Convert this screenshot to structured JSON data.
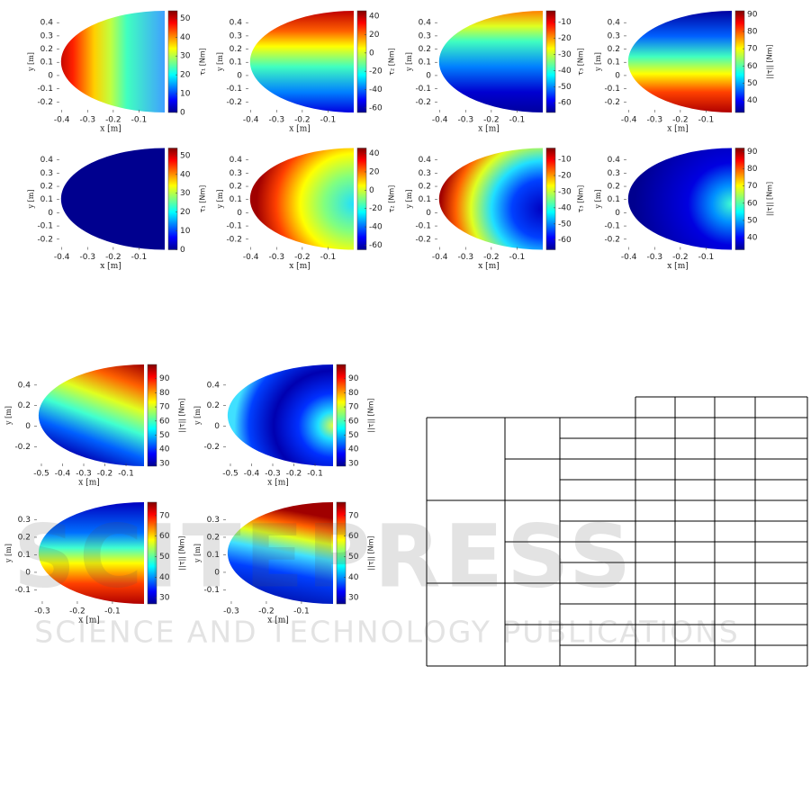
{
  "figures": [
    {
      "xlabel": "x [m]",
      "ylabel": "y [m]",
      "clabel": "τ₁ [Nm]",
      "xlim": [
        -0.42,
        0.0
      ],
      "ylim": [
        -0.28,
        0.49
      ],
      "xticks": [
        -0.4,
        -0.3,
        -0.2,
        -0.1
      ],
      "yticks": [
        -0.2,
        -0.1,
        0,
        0.1,
        0.2,
        0.3,
        0.4
      ],
      "clim": [
        0,
        54
      ],
      "cticks": [
        0,
        10,
        20,
        30,
        40,
        50
      ]
    },
    {
      "xlabel": "x [m]",
      "ylabel": "y [m]",
      "clabel": "τ₂ [Nm]",
      "xlim": [
        -0.42,
        0.0
      ],
      "ylim": [
        -0.28,
        0.49
      ],
      "xticks": [
        -0.4,
        -0.3,
        -0.2,
        -0.1
      ],
      "yticks": [
        -0.2,
        -0.1,
        0,
        0.1,
        0.2,
        0.3,
        0.4
      ],
      "clim": [
        -65,
        46
      ],
      "cticks": [
        -60,
        -40,
        -20,
        0,
        20,
        40
      ]
    },
    {
      "xlabel": "x [m]",
      "ylabel": "y [m]",
      "clabel": "τ₃ [Nm]",
      "xlim": [
        -0.42,
        0.0
      ],
      "ylim": [
        -0.28,
        0.49
      ],
      "xticks": [
        -0.4,
        -0.3,
        -0.2,
        -0.1
      ],
      "yticks": [
        -0.2,
        -0.1,
        0,
        0.1,
        0.2,
        0.3,
        0.4
      ],
      "clim": [
        -66,
        -3
      ],
      "cticks": [
        -60,
        -50,
        -40,
        -30,
        -20,
        -10
      ]
    },
    {
      "xlabel": "x [m]",
      "ylabel": "y [m]",
      "clabel": "||τ|| [Nm]",
      "xlim": [
        -0.42,
        0.0
      ],
      "ylim": [
        -0.28,
        0.49
      ],
      "xticks": [
        -0.4,
        -0.3,
        -0.2,
        -0.1
      ],
      "yticks": [
        -0.2,
        -0.1,
        0,
        0.1,
        0.2,
        0.3,
        0.4
      ],
      "clim": [
        33,
        92
      ],
      "cticks": [
        40,
        50,
        60,
        70,
        80,
        90
      ]
    },
    {
      "xlabel": "x [m]",
      "ylabel": "y [m]",
      "clabel": "τ₁ [Nm]",
      "xlim": [
        -0.42,
        0.0
      ],
      "ylim": [
        -0.28,
        0.49
      ],
      "xticks": [
        -0.4,
        -0.3,
        -0.2,
        -0.1
      ],
      "yticks": [
        -0.2,
        -0.1,
        0,
        0.1,
        0.2,
        0.3,
        0.4
      ],
      "clim": [
        0,
        54
      ],
      "cticks": [
        0,
        10,
        20,
        30,
        40,
        50
      ]
    },
    {
      "xlabel": "x [m]",
      "ylabel": "y [m]",
      "clabel": "τ₂ [Nm]",
      "xlim": [
        -0.42,
        0.0
      ],
      "ylim": [
        -0.28,
        0.49
      ],
      "xticks": [
        -0.4,
        -0.3,
        -0.2,
        -0.1
      ],
      "yticks": [
        -0.2,
        -0.1,
        0,
        0.1,
        0.2,
        0.3,
        0.4
      ],
      "clim": [
        -65,
        46
      ],
      "cticks": [
        -60,
        -40,
        -20,
        0,
        20,
        40
      ]
    },
    {
      "xlabel": "x [m]",
      "ylabel": "y [m]",
      "clabel": "τ₃ [Nm]",
      "xlim": [
        -0.42,
        0.0
      ],
      "ylim": [
        -0.28,
        0.49
      ],
      "xticks": [
        -0.4,
        -0.3,
        -0.2,
        -0.1
      ],
      "yticks": [
        -0.2,
        -0.1,
        0,
        0.1,
        0.2,
        0.3,
        0.4
      ],
      "clim": [
        -66,
        -3
      ],
      "cticks": [
        -60,
        -50,
        -40,
        -30,
        -20,
        -10
      ]
    },
    {
      "xlabel": "x [m]",
      "ylabel": "y [m]",
      "clabel": "||τ|| [Nm]",
      "xlim": [
        -0.42,
        0.0
      ],
      "ylim": [
        -0.28,
        0.49
      ],
      "xticks": [
        -0.4,
        -0.3,
        -0.2,
        -0.1
      ],
      "yticks": [
        -0.2,
        -0.1,
        0,
        0.1,
        0.2,
        0.3,
        0.4
      ],
      "clim": [
        33,
        92
      ],
      "cticks": [
        40,
        50,
        60,
        70,
        80,
        90
      ]
    },
    {
      "xlabel": "x [m]",
      "ylabel": "y [m]",
      "clabel": "||τ|| [Nm]",
      "xlim": [
        -0.534,
        -0.015
      ],
      "ylim": [
        -0.39,
        0.6
      ],
      "xticks": [
        -0.5,
        -0.4,
        -0.3,
        -0.2,
        -0.1
      ],
      "yticks": [
        -0.2,
        0,
        0.2,
        0.4
      ],
      "clim": [
        28,
        100
      ],
      "cticks": [
        30,
        40,
        50,
        60,
        70,
        80,
        90
      ]
    },
    {
      "xlabel": "x [m]",
      "ylabel": "y [m]",
      "clabel": "||τ|| [Nm]",
      "xlim": [
        -0.534,
        -0.015
      ],
      "ylim": [
        -0.39,
        0.6
      ],
      "xticks": [
        -0.5,
        -0.4,
        -0.3,
        -0.2,
        -0.1
      ],
      "yticks": [
        -0.2,
        0,
        0.2,
        0.4
      ],
      "clim": [
        28,
        100
      ],
      "cticks": [
        30,
        40,
        50,
        60,
        70,
        80,
        90
      ]
    },
    {
      "xlabel": "x [m]",
      "ylabel": "y [m]",
      "clabel": "||τ|| [Nm]",
      "xlim": [
        -0.323,
        -0.01
      ],
      "ylim": [
        -0.18,
        0.4
      ],
      "xticks": [
        -0.3,
        -0.2,
        -0.1
      ],
      "yticks": [
        -0.1,
        0,
        0.1,
        0.2,
        0.3
      ],
      "clim": [
        27,
        76.5
      ],
      "cticks": [
        30,
        40,
        50,
        60,
        70
      ]
    },
    {
      "xlabel": "x [m]",
      "ylabel": "y [m]",
      "clabel": "||τ|| [Nm]",
      "xlim": [
        -0.323,
        -0.01
      ],
      "ylim": [
        -0.18,
        0.4
      ],
      "xticks": [
        -0.3,
        -0.2,
        -0.1
      ],
      "yticks": [
        -0.1,
        0,
        0.1,
        0.2,
        0.3
      ],
      "clim": [
        27,
        76.5
      ],
      "cticks": [
        30,
        40,
        50,
        60,
        70
      ]
    }
  ],
  "watermark": {
    "name": "SCITEPRESS",
    "tagline": "SCIENCE AND TECHNOLOGY PUBLICATIONS"
  }
}
